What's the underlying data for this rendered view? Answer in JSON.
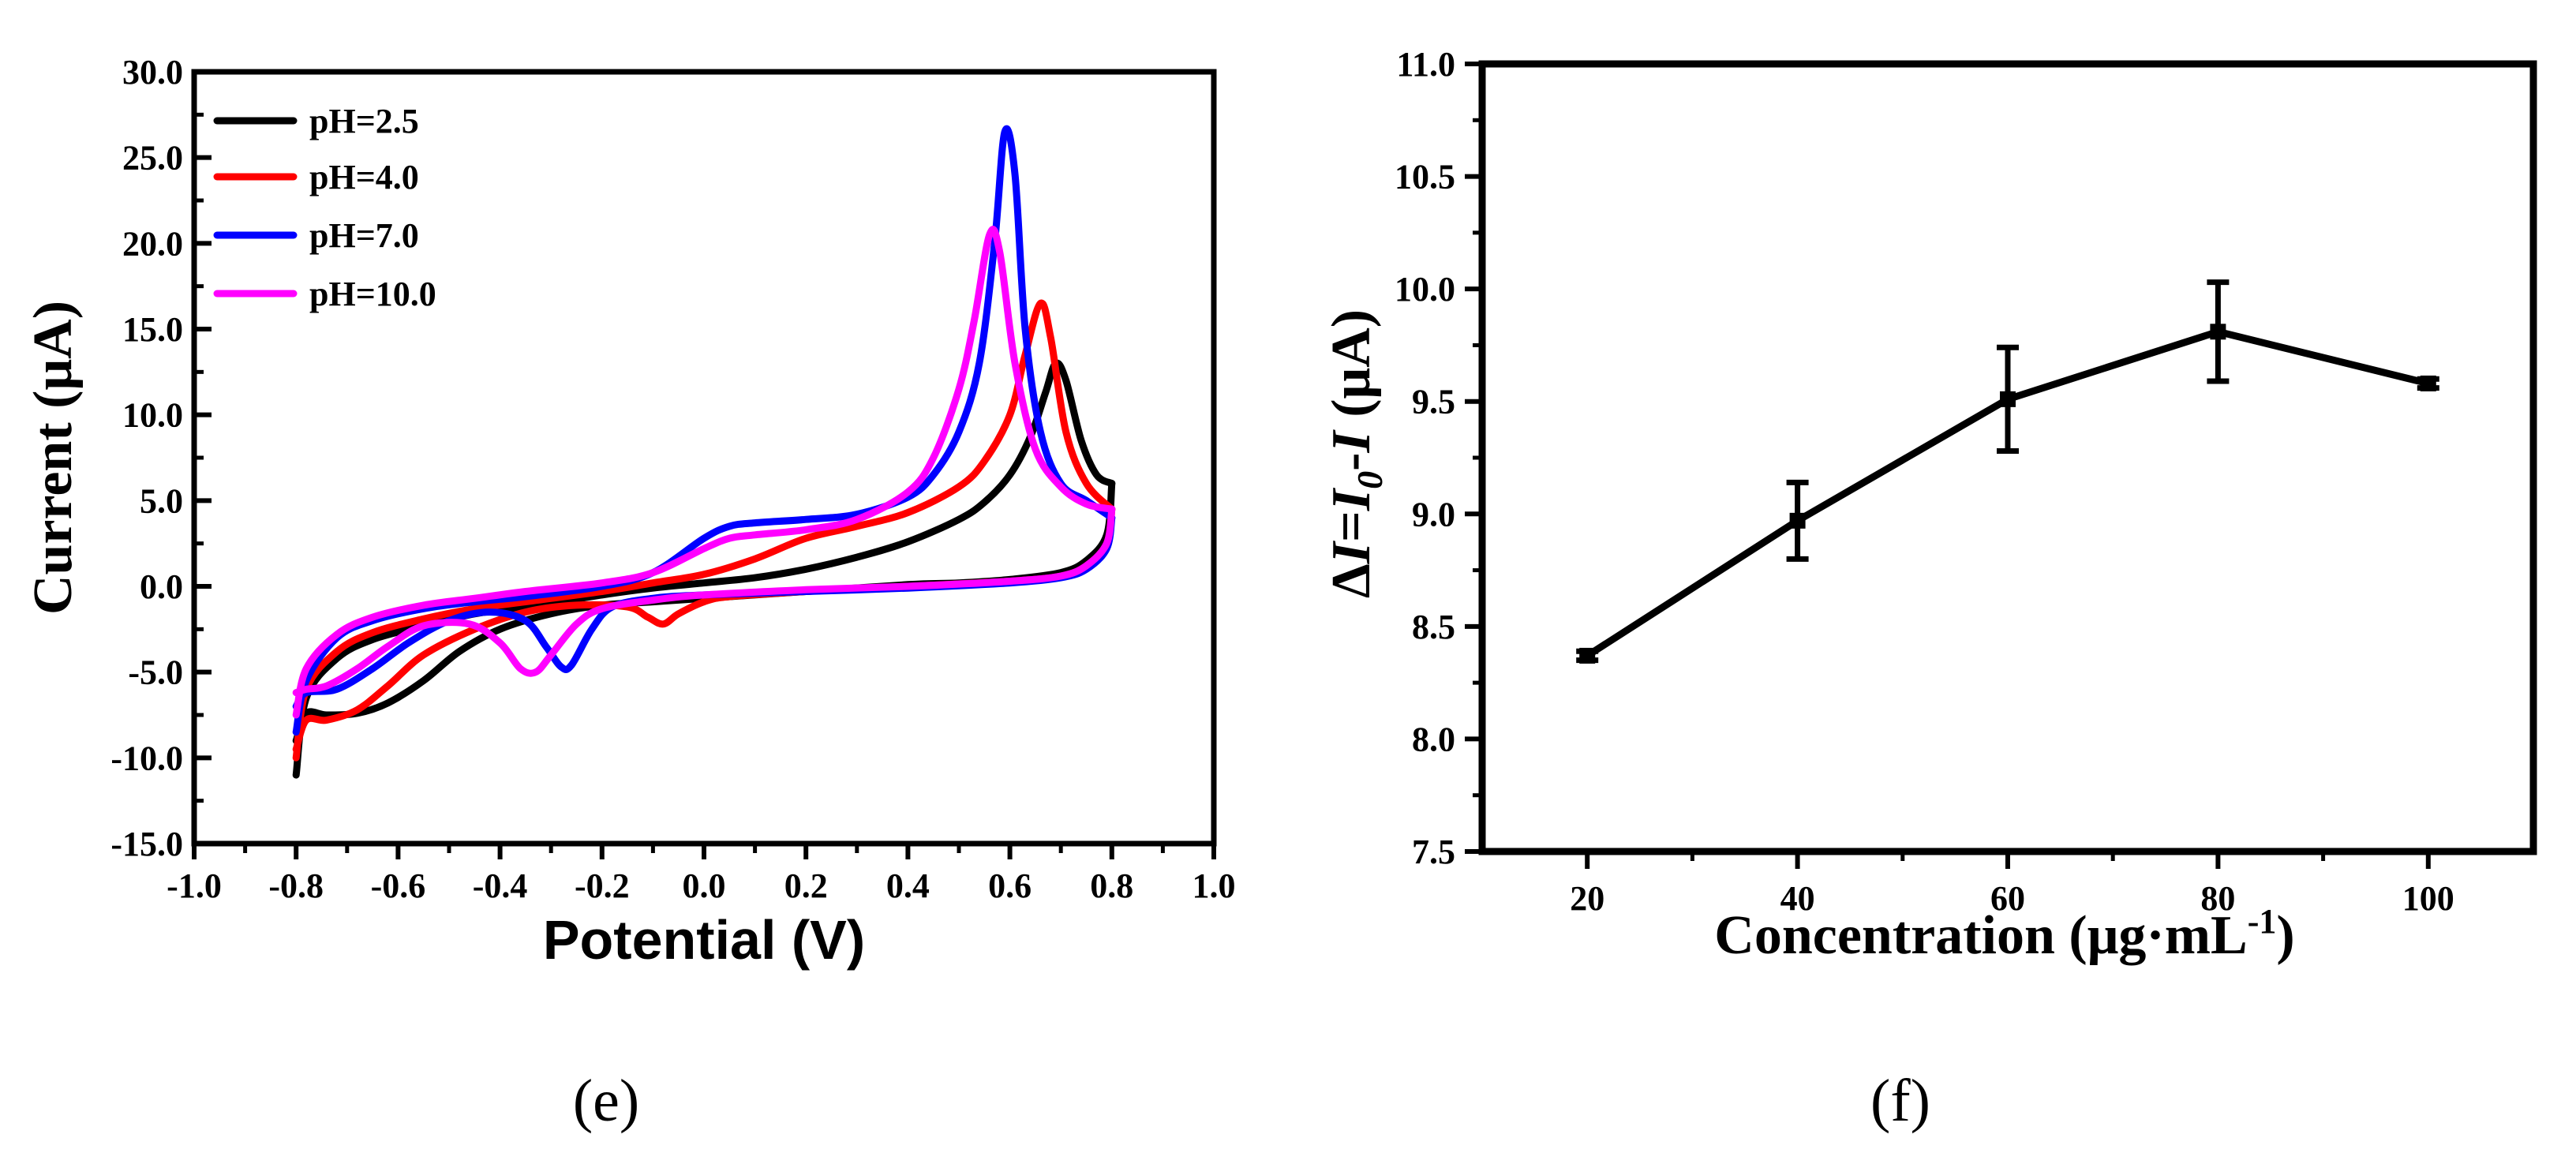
{
  "chart_data": [
    {
      "panel": "e",
      "type": "line",
      "title": "",
      "xlabel": "Potential (V)",
      "ylabel": "Current (μA)",
      "xlim": [
        -1.0,
        1.0
      ],
      "ylim": [
        -15.0,
        30.0
      ],
      "xticks": [
        "-1.0",
        "-0.8",
        "-0.6",
        "-0.4",
        "-0.2",
        "0.0",
        "0.2",
        "0.4",
        "0.6",
        "0.8",
        "1.0"
      ],
      "yticks": [
        "-15.0",
        "-10.0",
        "-5.0",
        "0.0",
        "5.0",
        "10.0",
        "15.0",
        "20.0",
        "25.0",
        "30.0"
      ],
      "legend_position": "top-left",
      "series": [
        {
          "name": "pH=2.5",
          "color": "#000000",
          "forward": [
            [
              -0.8,
              -11.0
            ],
            [
              -0.78,
              -6.5
            ],
            [
              -0.72,
              -4.2
            ],
            [
              -0.65,
              -3.1
            ],
            [
              -0.55,
              -2.3
            ],
            [
              -0.45,
              -1.6
            ],
            [
              -0.35,
              -1.2
            ],
            [
              -0.2,
              -0.5
            ],
            [
              -0.1,
              -0.1
            ],
            [
              0.0,
              0.2
            ],
            [
              0.1,
              0.5
            ],
            [
              0.2,
              1.0
            ],
            [
              0.3,
              1.7
            ],
            [
              0.4,
              2.6
            ],
            [
              0.5,
              3.9
            ],
            [
              0.55,
              4.9
            ],
            [
              0.6,
              6.5
            ],
            [
              0.64,
              8.7
            ],
            [
              0.67,
              11.3
            ],
            [
              0.69,
              13.0
            ],
            [
              0.71,
              12.0
            ],
            [
              0.74,
              8.5
            ],
            [
              0.77,
              6.5
            ],
            [
              0.8,
              6.0
            ]
          ],
          "reverse": [
            [
              0.8,
              6.0
            ],
            [
              0.79,
              3.0
            ],
            [
              0.75,
              1.5
            ],
            [
              0.7,
              0.8
            ],
            [
              0.6,
              0.4
            ],
            [
              0.5,
              0.2
            ],
            [
              0.4,
              0.1
            ],
            [
              0.2,
              -0.3
            ],
            [
              0.0,
              -0.7
            ],
            [
              -0.1,
              -0.9
            ],
            [
              -0.2,
              -1.1
            ],
            [
              -0.3,
              -1.6
            ],
            [
              -0.4,
              -2.5
            ],
            [
              -0.48,
              -3.8
            ],
            [
              -0.55,
              -5.5
            ],
            [
              -0.62,
              -6.8
            ],
            [
              -0.68,
              -7.4
            ],
            [
              -0.74,
              -7.5
            ],
            [
              -0.78,
              -7.4
            ],
            [
              -0.8,
              -9.0
            ]
          ]
        },
        {
          "name": "pH=4.0",
          "color": "#ff0000",
          "forward": [
            [
              -0.8,
              -10.0
            ],
            [
              -0.78,
              -6.0
            ],
            [
              -0.72,
              -3.8
            ],
            [
              -0.65,
              -2.7
            ],
            [
              -0.55,
              -1.9
            ],
            [
              -0.45,
              -1.3
            ],
            [
              -0.35,
              -0.9
            ],
            [
              -0.2,
              -0.3
            ],
            [
              -0.1,
              0.2
            ],
            [
              0.0,
              0.7
            ],
            [
              0.1,
              1.6
            ],
            [
              0.2,
              2.8
            ],
            [
              0.3,
              3.5
            ],
            [
              0.4,
              4.3
            ],
            [
              0.5,
              5.8
            ],
            [
              0.55,
              7.3
            ],
            [
              0.6,
              10.0
            ],
            [
              0.63,
              13.5
            ],
            [
              0.66,
              16.5
            ],
            [
              0.68,
              14.5
            ],
            [
              0.71,
              9.0
            ],
            [
              0.75,
              6.0
            ],
            [
              0.8,
              4.5
            ]
          ],
          "reverse": [
            [
              0.8,
              4.5
            ],
            [
              0.79,
              2.5
            ],
            [
              0.75,
              1.2
            ],
            [
              0.7,
              0.6
            ],
            [
              0.6,
              0.3
            ],
            [
              0.4,
              0.0
            ],
            [
              0.2,
              -0.3
            ],
            [
              0.05,
              -0.6
            ],
            [
              0.0,
              -0.9
            ],
            [
              -0.05,
              -1.6
            ],
            [
              -0.08,
              -2.2
            ],
            [
              -0.11,
              -1.8
            ],
            [
              -0.15,
              -1.2
            ],
            [
              -0.25,
              -1.1
            ],
            [
              -0.35,
              -1.5
            ],
            [
              -0.45,
              -2.5
            ],
            [
              -0.55,
              -4.0
            ],
            [
              -0.62,
              -5.8
            ],
            [
              -0.68,
              -7.2
            ],
            [
              -0.74,
              -7.8
            ],
            [
              -0.78,
              -7.8
            ],
            [
              -0.8,
              -9.5
            ]
          ]
        },
        {
          "name": "pH=7.0",
          "color": "#0000ff",
          "forward": [
            [
              -0.8,
              -8.5
            ],
            [
              -0.78,
              -5.5
            ],
            [
              -0.72,
              -3.0
            ],
            [
              -0.65,
              -2.0
            ],
            [
              -0.55,
              -1.3
            ],
            [
              -0.45,
              -0.9
            ],
            [
              -0.35,
              -0.6
            ],
            [
              -0.2,
              0.0
            ],
            [
              -0.1,
              0.8
            ],
            [
              0.0,
              2.8
            ],
            [
              0.05,
              3.5
            ],
            [
              0.1,
              3.7
            ],
            [
              0.2,
              3.9
            ],
            [
              0.3,
              4.2
            ],
            [
              0.4,
              5.2
            ],
            [
              0.45,
              6.5
            ],
            [
              0.5,
              9.0
            ],
            [
              0.54,
              13.0
            ],
            [
              0.57,
              20.0
            ],
            [
              0.59,
              26.5
            ],
            [
              0.61,
              24.0
            ],
            [
              0.63,
              15.0
            ],
            [
              0.66,
              9.0
            ],
            [
              0.7,
              6.0
            ],
            [
              0.75,
              5.0
            ],
            [
              0.8,
              4.0
            ]
          ],
          "reverse": [
            [
              0.8,
              4.0
            ],
            [
              0.79,
              2.2
            ],
            [
              0.75,
              1.0
            ],
            [
              0.7,
              0.5
            ],
            [
              0.6,
              0.2
            ],
            [
              0.4,
              -0.1
            ],
            [
              0.2,
              -0.3
            ],
            [
              0.0,
              -0.5
            ],
            [
              -0.1,
              -0.7
            ],
            [
              -0.18,
              -1.2
            ],
            [
              -0.22,
              -2.5
            ],
            [
              -0.26,
              -4.6
            ],
            [
              -0.28,
              -4.7
            ],
            [
              -0.31,
              -3.5
            ],
            [
              -0.35,
              -2.0
            ],
            [
              -0.42,
              -1.5
            ],
            [
              -0.5,
              -2.0
            ],
            [
              -0.58,
              -3.3
            ],
            [
              -0.65,
              -4.8
            ],
            [
              -0.72,
              -6.0
            ],
            [
              -0.78,
              -6.2
            ],
            [
              -0.8,
              -7.0
            ]
          ]
        },
        {
          "name": "pH=10.0",
          "color": "#ff00ff",
          "forward": [
            [
              -0.8,
              -7.5
            ],
            [
              -0.78,
              -4.8
            ],
            [
              -0.72,
              -2.8
            ],
            [
              -0.65,
              -1.8
            ],
            [
              -0.55,
              -1.1
            ],
            [
              -0.45,
              -0.7
            ],
            [
              -0.35,
              -0.3
            ],
            [
              -0.2,
              0.2
            ],
            [
              -0.1,
              0.8
            ],
            [
              0.0,
              2.2
            ],
            [
              0.05,
              2.8
            ],
            [
              0.1,
              3.0
            ],
            [
              0.2,
              3.3
            ],
            [
              0.3,
              3.9
            ],
            [
              0.4,
              5.5
            ],
            [
              0.45,
              7.5
            ],
            [
              0.5,
              11.5
            ],
            [
              0.53,
              15.5
            ],
            [
              0.56,
              20.5
            ],
            [
              0.58,
              19.5
            ],
            [
              0.61,
              13.0
            ],
            [
              0.65,
              8.0
            ],
            [
              0.7,
              5.8
            ],
            [
              0.75,
              4.8
            ],
            [
              0.8,
              4.5
            ]
          ],
          "reverse": [
            [
              0.8,
              4.5
            ],
            [
              0.79,
              2.5
            ],
            [
              0.75,
              1.2
            ],
            [
              0.7,
              0.6
            ],
            [
              0.6,
              0.3
            ],
            [
              0.4,
              0.0
            ],
            [
              0.2,
              -0.2
            ],
            [
              0.0,
              -0.5
            ],
            [
              -0.1,
              -0.8
            ],
            [
              -0.2,
              -1.3
            ],
            [
              -0.25,
              -2.2
            ],
            [
              -0.3,
              -4.0
            ],
            [
              -0.33,
              -5.0
            ],
            [
              -0.36,
              -4.8
            ],
            [
              -0.4,
              -3.3
            ],
            [
              -0.46,
              -2.2
            ],
            [
              -0.55,
              -2.3
            ],
            [
              -0.62,
              -3.5
            ],
            [
              -0.68,
              -4.8
            ],
            [
              -0.74,
              -5.8
            ],
            [
              -0.78,
              -6.0
            ],
            [
              -0.8,
              -6.2
            ]
          ]
        }
      ]
    },
    {
      "panel": "f",
      "type": "line",
      "title": "",
      "xlabel_parts": [
        "Concentration (μg·mL",
        "-1",
        ")"
      ],
      "ylabel_parts": [
        "Δ",
        "I",
        "=",
        "I",
        "0",
        "-",
        "I",
        " (μA)"
      ],
      "xlim": [
        10,
        110
      ],
      "ylim": [
        7.5,
        11.0
      ],
      "xticks": [
        "20",
        "40",
        "60",
        "80",
        "100"
      ],
      "yticks": [
        "7.5",
        "8.0",
        "8.5",
        "9.0",
        "9.5",
        "10.0",
        "10.5",
        "11.0"
      ],
      "series": [
        {
          "name": "ΔI",
          "color": "#000000",
          "x": [
            20,
            40,
            60,
            80,
            100
          ],
          "y": [
            8.37,
            8.97,
            9.51,
            9.81,
            9.58
          ],
          "error": [
            0.02,
            0.17,
            0.23,
            0.22,
            0.02
          ]
        }
      ]
    }
  ],
  "panel_labels": {
    "left": "(e)",
    "right": "(f)"
  }
}
